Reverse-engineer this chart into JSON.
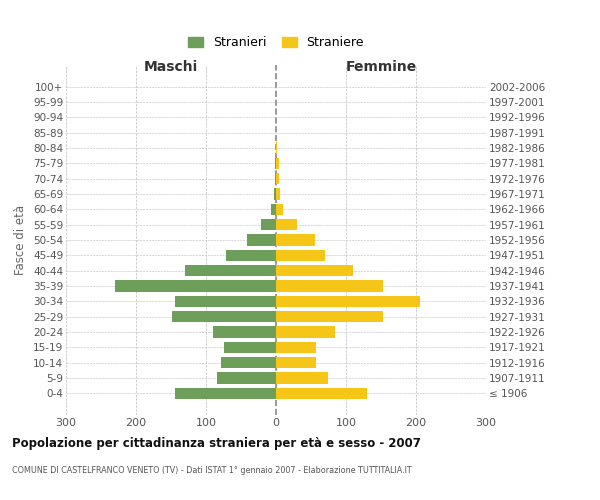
{
  "age_groups": [
    "100+",
    "95-99",
    "90-94",
    "85-89",
    "80-84",
    "75-79",
    "70-74",
    "65-69",
    "60-64",
    "55-59",
    "50-54",
    "45-49",
    "40-44",
    "35-39",
    "30-34",
    "25-29",
    "20-24",
    "15-19",
    "10-14",
    "5-9",
    "0-4"
  ],
  "birth_years": [
    "≤ 1906",
    "1907-1911",
    "1912-1916",
    "1917-1921",
    "1922-1926",
    "1927-1931",
    "1932-1936",
    "1937-1941",
    "1942-1946",
    "1947-1951",
    "1952-1956",
    "1957-1961",
    "1962-1966",
    "1967-1971",
    "1972-1976",
    "1977-1981",
    "1982-1986",
    "1987-1991",
    "1992-1996",
    "1997-2001",
    "2002-2006"
  ],
  "males": [
    0,
    0,
    0,
    0,
    0,
    2,
    2,
    3,
    7,
    22,
    42,
    72,
    130,
    230,
    145,
    148,
    90,
    75,
    78,
    84,
    145
  ],
  "females": [
    0,
    0,
    0,
    0,
    2,
    4,
    4,
    6,
    10,
    30,
    55,
    70,
    110,
    153,
    205,
    153,
    84,
    57,
    57,
    74,
    130
  ],
  "male_color": "#6d9e5a",
  "female_color": "#f5c518",
  "title": "Popolazione per cittadinanza straniera per età e sesso - 2007",
  "subtitle": "COMUNE DI CASTELFRANCO VENETO (TV) - Dati ISTAT 1° gennaio 2007 - Elaborazione TUTTITALIA.IT",
  "ylabel_left": "Fasce di età",
  "xlabel_left": "Maschi",
  "xlabel_right": "Femmine",
  "legend_male": "Stranieri",
  "legend_female": "Straniere",
  "xlim": 300,
  "bg_color": "#ffffff",
  "grid_color": "#bbbbbb",
  "bar_height": 0.75
}
